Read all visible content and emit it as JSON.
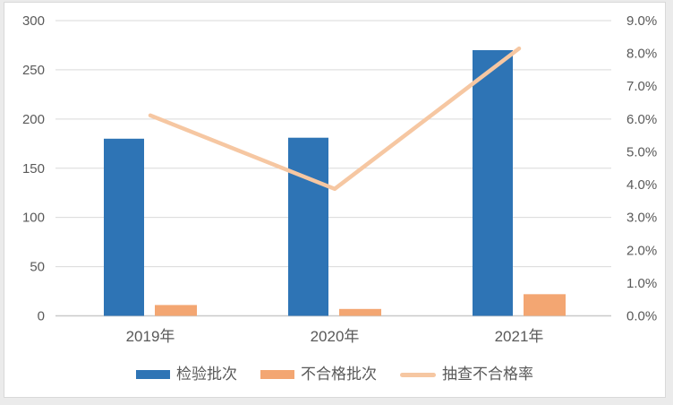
{
  "chart_data": {
    "type": "combo",
    "title": "",
    "categories": [
      "2019年",
      "2020年",
      "2021年"
    ],
    "series": [
      {
        "key": "inspection-batches",
        "name": "检验批次",
        "chart": "bar",
        "axis": "left",
        "values": [
          180,
          181,
          270
        ],
        "color": "#2E74B5"
      },
      {
        "key": "failed-batches",
        "name": "不合格批次",
        "chart": "bar",
        "axis": "left",
        "values": [
          11,
          7,
          22
        ],
        "color": "#F3A672"
      },
      {
        "key": "sampling-failure-rate",
        "name": "抽查不合格率",
        "chart": "line",
        "axis": "right",
        "unit": "%",
        "values": [
          6.11,
          3.87,
          8.15
        ],
        "color": "#F6C7A2"
      }
    ],
    "left_axis": {
      "min": 0,
      "max": 300,
      "tick_step": 50,
      "tick_labels": [
        "0",
        "50",
        "100",
        "150",
        "200",
        "250",
        "300"
      ]
    },
    "right_axis": {
      "min": 0,
      "max": 9,
      "unit": "%",
      "tick_labels": [
        "0.0%",
        "1.0%",
        "2.0%",
        "3.0%",
        "4.0%",
        "5.0%",
        "6.0%",
        "7.0%",
        "8.0%",
        "9.0%"
      ]
    },
    "grid": {
      "horizontal": true,
      "color": "#D9D9D9"
    },
    "axis_line_color": "#C9C9C9",
    "axis_text_color": "#595959",
    "legend_position": "bottom"
  }
}
